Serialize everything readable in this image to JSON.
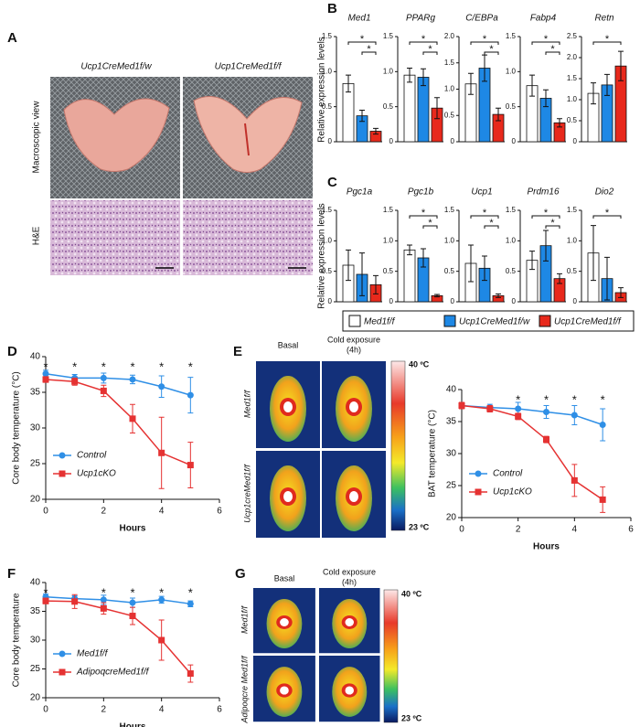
{
  "panels": {
    "a": {
      "label": "A",
      "columns": [
        "Ucp1CreMed1f/w",
        "Ucp1CreMed1f/f"
      ],
      "rows": [
        "Macroscopic view",
        "H&E"
      ]
    },
    "b": {
      "label": "B",
      "ylabel": "Relative expression levels"
    },
    "c": {
      "label": "C",
      "ylabel": "Relative expression levels"
    },
    "d": {
      "label": "D"
    },
    "e": {
      "label": "E",
      "columns": [
        [
          "Basal"
        ],
        [
          "Cold exposure",
          "(4h)"
        ]
      ],
      "rows": [
        "Med1f/f",
        "Ucp1creMed1f/f"
      ],
      "scale": [
        "40 ºC",
        "23 ºC"
      ]
    },
    "f": {
      "label": "F"
    },
    "g": {
      "label": "G",
      "columns": [
        [
          "Basal"
        ],
        [
          "Cold exposure",
          "(4h)"
        ]
      ],
      "rows": [
        "Med1f/f",
        "Adipoqcre Med1f/f"
      ],
      "scale": [
        "40 ºC",
        "23 ºC"
      ]
    }
  },
  "legend": [
    {
      "name": "Med1f/f",
      "color": "#ffffff"
    },
    {
      "name": "Ucp1CreMed1f/w",
      "color": "#1e88e5"
    },
    {
      "name": "Ucp1CreMed1f/f",
      "color": "#e8291c"
    }
  ],
  "chart_data": [
    {
      "type": "bar",
      "title": "Med1",
      "values": [
        0.83,
        0.37,
        0.15
      ],
      "errors": [
        0.12,
        0.08,
        0.04
      ],
      "ylim": [
        0,
        1.5
      ],
      "yticks": [
        0,
        0.5,
        {
          "value": 1,
          "label": "1.0"
        },
        1.5
      ],
      "annotations": [
        {
          "text": "*",
          "pair": [
            0,
            2
          ]
        },
        {
          "text": "*",
          "pair": [
            1,
            2
          ]
        }
      ]
    },
    {
      "type": "bar",
      "title": "PPARg",
      "values": [
        0.95,
        0.92,
        0.48
      ],
      "errors": [
        0.1,
        0.12,
        0.15
      ],
      "ylim": [
        0,
        1.5
      ],
      "yticks": [
        0,
        0.5,
        {
          "value": 1,
          "label": "1.0"
        },
        1.5
      ],
      "annotations": [
        {
          "text": "*",
          "pair": [
            0,
            2
          ]
        },
        {
          "text": "*",
          "pair": [
            1,
            2
          ]
        }
      ]
    },
    {
      "type": "bar",
      "title": "C/EBPa",
      "values": [
        1.1,
        1.4,
        0.52
      ],
      "errors": [
        0.2,
        0.25,
        0.12
      ],
      "ylim": [
        0,
        2
      ],
      "yticks": [
        0,
        0.5,
        {
          "value": 1,
          "label": "1.0"
        },
        1.5,
        {
          "value": 2,
          "label": "2.0"
        }
      ],
      "annotations": [
        {
          "text": "*",
          "pair": [
            0,
            2
          ]
        },
        {
          "text": "*",
          "pair": [
            1,
            2
          ]
        }
      ]
    },
    {
      "type": "bar",
      "title": "Fabp4",
      "values": [
        0.8,
        0.62,
        0.27
      ],
      "errors": [
        0.15,
        0.12,
        0.06
      ],
      "ylim": [
        0,
        1.5
      ],
      "yticks": [
        0,
        0.5,
        {
          "value": 1,
          "label": "1.0"
        },
        1.5
      ],
      "annotations": [
        {
          "text": "*",
          "pair": [
            0,
            2
          ]
        },
        {
          "text": "*",
          "pair": [
            1,
            2
          ]
        }
      ]
    },
    {
      "type": "bar",
      "title": "Retn",
      "values": [
        1.15,
        1.35,
        1.8
      ],
      "errors": [
        0.25,
        0.25,
        0.35
      ],
      "ylim": [
        0,
        2.5
      ],
      "yticks": [
        0,
        0.5,
        {
          "value": 1,
          "label": "1.0"
        },
        1.5,
        {
          "value": 2,
          "label": "2.0"
        },
        2.5
      ],
      "annotations": [
        {
          "text": "*",
          "pair": [
            0,
            2
          ]
        }
      ]
    },
    {
      "type": "bar",
      "title": "Pgc1a",
      "values": [
        0.6,
        0.45,
        0.28
      ],
      "errors": [
        0.25,
        0.35,
        0.15
      ],
      "ylim": [
        0,
        1.5
      ],
      "yticks": [
        0,
        0.5,
        {
          "value": 1,
          "label": "1.0"
        },
        1.5
      ],
      "annotations": []
    },
    {
      "type": "bar",
      "title": "Pgc1b",
      "values": [
        0.85,
        0.72,
        0.1
      ],
      "errors": [
        0.08,
        0.15,
        0.02
      ],
      "ylim": [
        0,
        1.5
      ],
      "yticks": [
        0,
        0.5,
        {
          "value": 1,
          "label": "1.0"
        },
        1.5
      ],
      "annotations": [
        {
          "text": "*",
          "pair": [
            0,
            2
          ]
        },
        {
          "text": "*",
          "pair": [
            1,
            2
          ]
        }
      ]
    },
    {
      "type": "bar",
      "title": "Ucp1",
      "values": [
        0.63,
        0.55,
        0.1
      ],
      "errors": [
        0.3,
        0.2,
        0.03
      ],
      "ylim": [
        0,
        1.5
      ],
      "yticks": [
        0,
        0.5,
        {
          "value": 1,
          "label": "1.0"
        },
        1.5
      ],
      "annotations": [
        {
          "text": "*",
          "pair": [
            0,
            2
          ]
        },
        {
          "text": "*",
          "pair": [
            1,
            2
          ]
        }
      ]
    },
    {
      "type": "bar",
      "title": "Prdm16",
      "values": [
        0.68,
        0.92,
        0.38
      ],
      "errors": [
        0.15,
        0.25,
        0.08
      ],
      "ylim": [
        0,
        1.5
      ],
      "yticks": [
        0,
        0.5,
        {
          "value": 1,
          "label": "1.0"
        },
        1.5
      ],
      "annotations": [
        {
          "text": "*",
          "pair": [
            0,
            2
          ]
        },
        {
          "text": "*",
          "pair": [
            1,
            2
          ]
        }
      ]
    },
    {
      "type": "bar",
      "title": "Dio2",
      "values": [
        0.8,
        0.38,
        0.15
      ],
      "errors": [
        0.45,
        0.35,
        0.08
      ],
      "ylim": [
        0,
        1.5
      ],
      "yticks": [
        0,
        0.5,
        {
          "value": 1,
          "label": "1.0"
        },
        1.5
      ],
      "annotations": [
        {
          "text": "*",
          "pair": [
            0,
            2
          ]
        }
      ]
    },
    {
      "type": "line",
      "ylabel": "Core body temperature (°C)",
      "xlabel": "Hours",
      "x": [
        0,
        1,
        2,
        3,
        4,
        5
      ],
      "xlim": [
        0,
        6
      ],
      "xticks": [
        0,
        2,
        4,
        6
      ],
      "ylim": [
        20,
        40
      ],
      "yticks": [
        20,
        25,
        30,
        35,
        40
      ],
      "legend": "lower left",
      "series": [
        {
          "name": "Control",
          "color": "#2f8fe6",
          "marker": "circle",
          "values": [
            37.6,
            37.0,
            37.0,
            36.8,
            35.8,
            34.6
          ],
          "errors": [
            0.5,
            0.5,
            0.7,
            0.6,
            1.5,
            2.5
          ]
        },
        {
          "name": "Ucp1cKO",
          "color": "#e53232",
          "marker": "square",
          "values": [
            36.8,
            36.5,
            35.2,
            31.3,
            26.5,
            24.8
          ],
          "errors": [
            0.4,
            0.5,
            0.8,
            2.0,
            5.0,
            3.2
          ]
        }
      ],
      "annotations": [
        {
          "text": "*",
          "x": 0
        },
        {
          "text": "*",
          "x": 1
        },
        {
          "text": "*",
          "x": 2
        },
        {
          "text": "*",
          "x": 3
        },
        {
          "text": "*",
          "x": 4
        },
        {
          "text": "*",
          "x": 5
        }
      ]
    },
    {
      "type": "line",
      "ylabel": "BAT temperature (°C)",
      "xlabel": "Hours",
      "x": [
        0,
        1,
        2,
        3,
        4,
        5
      ],
      "xlim": [
        0,
        6
      ],
      "xticks": [
        0,
        2,
        4,
        6
      ],
      "ylim": [
        20,
        40
      ],
      "yticks": [
        20,
        25,
        30,
        35,
        40
      ],
      "legend": "lower left",
      "series": [
        {
          "name": "Control",
          "color": "#2f8fe6",
          "marker": "circle",
          "values": [
            37.5,
            37.2,
            37.0,
            36.5,
            36.0,
            34.5
          ],
          "errors": [
            0.5,
            0.5,
            1.0,
            1.0,
            1.5,
            2.5
          ]
        },
        {
          "name": "Ucp1cKO",
          "color": "#e53232",
          "marker": "square",
          "values": [
            37.5,
            37.0,
            35.8,
            32.2,
            25.8,
            22.8
          ],
          "errors": [
            0.5,
            0.5,
            0.5,
            0.5,
            2.5,
            2.0
          ]
        }
      ],
      "annotations": [
        {
          "text": "*",
          "x": 2
        },
        {
          "text": "*",
          "x": 3
        },
        {
          "text": "*",
          "x": 4
        },
        {
          "text": "*",
          "x": 5
        }
      ]
    },
    {
      "type": "line",
      "ylabel": "Core body temperature",
      "xlabel": "Hours",
      "x": [
        0,
        1,
        2,
        3,
        4,
        5
      ],
      "xlim": [
        0,
        6
      ],
      "xticks": [
        0,
        2,
        4,
        6
      ],
      "ylim": [
        20,
        40
      ],
      "yticks": [
        20,
        25,
        30,
        35,
        40
      ],
      "legend": "lower left",
      "series": [
        {
          "name": "Med1f/f",
          "color": "#2f8fe6",
          "marker": "circle",
          "values": [
            37.5,
            37.2,
            37.0,
            36.5,
            37.0,
            36.3
          ],
          "errors": [
            0.5,
            0.5,
            0.8,
            0.8,
            0.6,
            0.5
          ]
        },
        {
          "name": "AdipoqcreMed1f/f",
          "color": "#e53232",
          "marker": "square",
          "values": [
            36.8,
            36.7,
            35.5,
            34.2,
            30.0,
            24.2
          ],
          "errors": [
            0.5,
            1.2,
            1.0,
            1.5,
            3.5,
            1.5
          ]
        }
      ],
      "annotations": [
        {
          "text": "*",
          "x": 0
        },
        {
          "text": "*",
          "x": 2
        },
        {
          "text": "*",
          "x": 3
        },
        {
          "text": "*",
          "x": 4
        },
        {
          "text": "*",
          "x": 5
        }
      ]
    }
  ]
}
